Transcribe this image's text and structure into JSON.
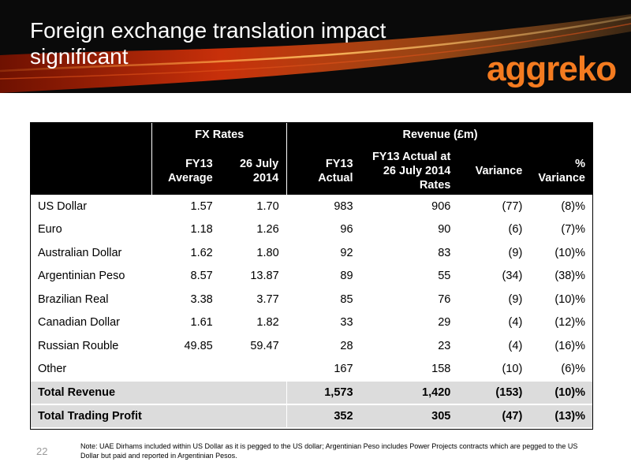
{
  "header": {
    "title": "Foreign exchange translation impact significant",
    "logo_text": "aggreko"
  },
  "table": {
    "group_headers": {
      "fx": "FX Rates",
      "revenue": "Revenue (£m)"
    },
    "columns": [
      "FY13\nAverage",
      "26 July\n2014",
      "FY13\nActual",
      "FY13 Actual at\n26 July 2014\nRates",
      "Variance",
      "%\nVariance"
    ],
    "rows": [
      [
        "US Dollar",
        "1.57",
        "1.70",
        "983",
        "906",
        "(77)",
        "(8)%"
      ],
      [
        "Euro",
        "1.18",
        "1.26",
        "96",
        "90",
        "(6)",
        "(7)%"
      ],
      [
        "Australian Dollar",
        "1.62",
        "1.80",
        "92",
        "83",
        "(9)",
        "(10)%"
      ],
      [
        "Argentinian Peso",
        "8.57",
        "13.87",
        "89",
        "55",
        "(34)",
        "(38)%"
      ],
      [
        "Brazilian Real",
        "3.38",
        "3.77",
        "85",
        "76",
        "(9)",
        "(10)%"
      ],
      [
        "Canadian Dollar",
        "1.61",
        "1.82",
        "33",
        "29",
        "(4)",
        "(12)%"
      ],
      [
        "Russian Rouble",
        "49.85",
        "59.47",
        "28",
        "23",
        "(4)",
        "(16)%"
      ],
      [
        "Other",
        "",
        "",
        "167",
        "158",
        "(10)",
        "(6)%"
      ]
    ],
    "totals": [
      [
        "Total Revenue",
        "",
        "",
        "1,573",
        "1,420",
        "(153)",
        "(10)%"
      ],
      [
        "Total Trading Profit",
        "",
        "",
        "352",
        "305",
        "(47)",
        "(13)%"
      ]
    ]
  },
  "footer": {
    "page_number": "22",
    "note": "Note: UAE Dirhams included within US Dollar as it is pegged to the US dollar; Argentinian Peso includes Power Projects contracts which are pegged to the US Dollar but paid and reported in Argentinian Pesos."
  },
  "colors": {
    "brand_orange": "#f47b20",
    "header_bg": "#0a0a0a",
    "total_row_bg": "#dcdcdc"
  }
}
